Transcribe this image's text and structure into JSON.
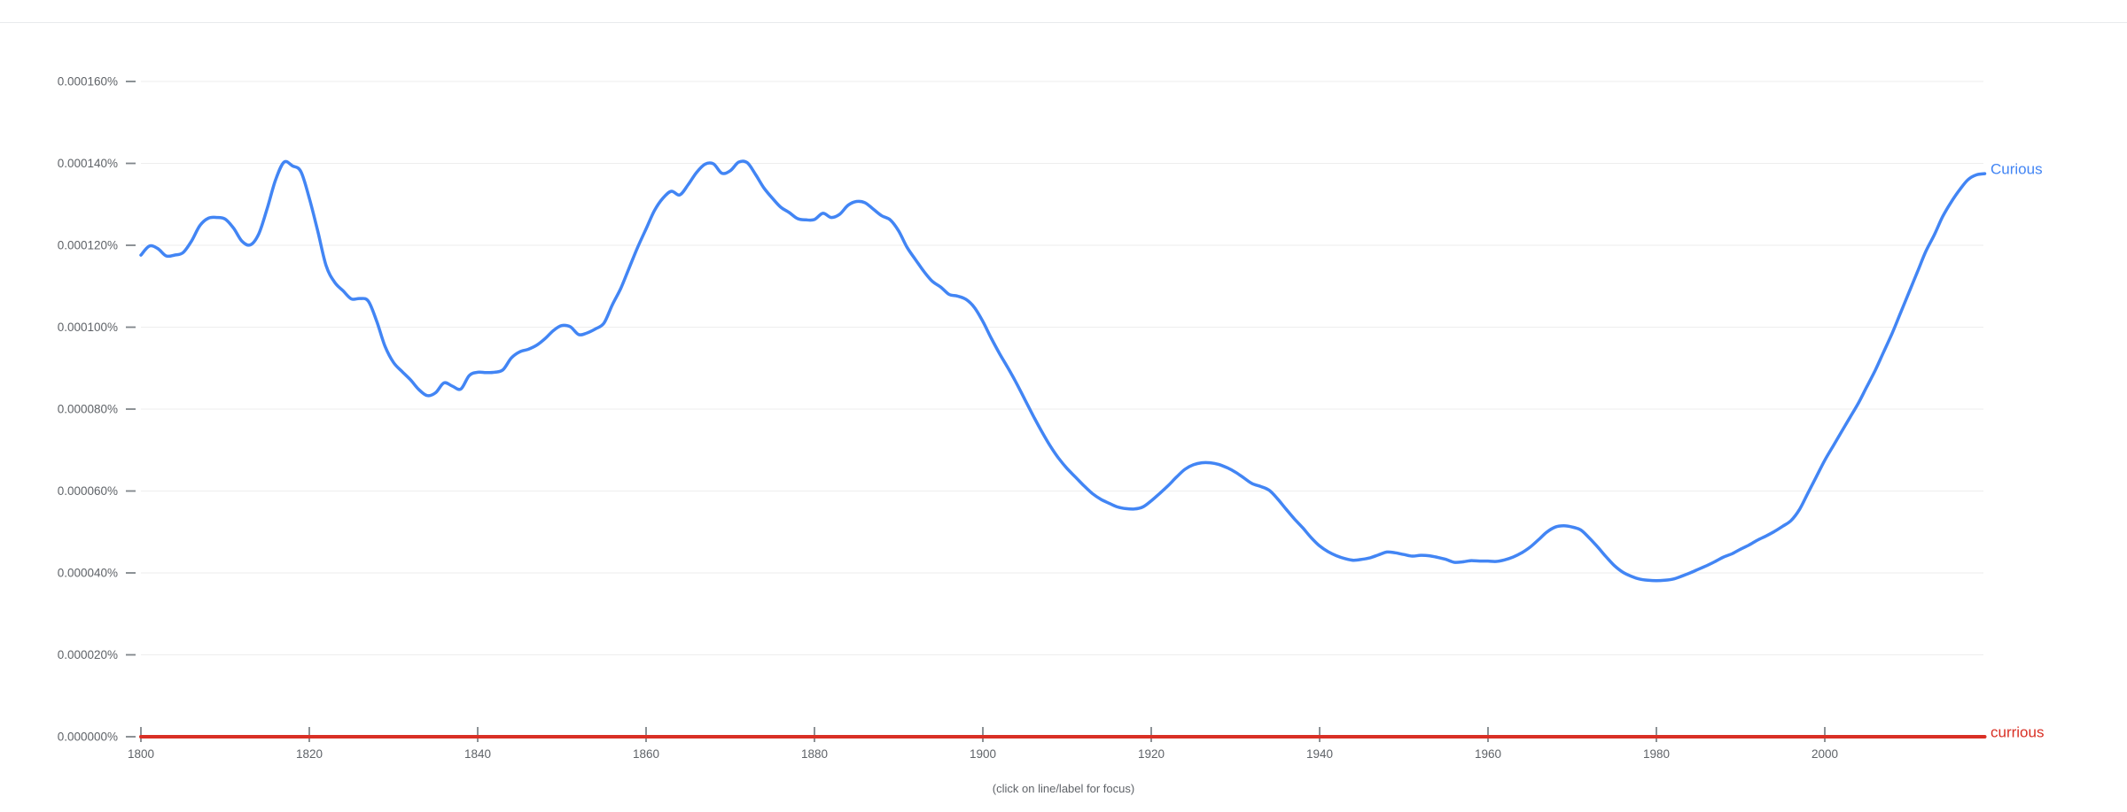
{
  "page": {
    "background": "#ffffff",
    "divider_color": "#e8eaed",
    "footer_hint": "(click on line/label for focus)"
  },
  "chart_data": {
    "type": "line",
    "title": "",
    "xlabel": "",
    "ylabel": "",
    "grid": true,
    "legend_position": "inline-right-end-labels",
    "x_axis": {
      "range": [
        1800,
        2019
      ],
      "ticks": [
        1800,
        1820,
        1840,
        1860,
        1880,
        1900,
        1920,
        1940,
        1960,
        1980,
        2000
      ]
    },
    "y_axis": {
      "unit": "percent",
      "note": "series values are stored in millionths of a percent (140 = 0.000140%)",
      "tick_labels": [
        "0.000160%",
        "0.000140%",
        "0.000120%",
        "0.000100%",
        "0.000080%",
        "0.000060%",
        "0.000040%",
        "0.000020%",
        "0.000000%"
      ],
      "tick_values": [
        160,
        140,
        120,
        100,
        80,
        60,
        40,
        20,
        0
      ],
      "range": [
        0,
        173
      ]
    },
    "colors": {
      "grid": "#eeeeee",
      "axis_text": "#5f6368",
      "tick_mark": "#80868b"
    },
    "series": [
      {
        "name": "Curious",
        "color": "#4285f4",
        "stroke_width": 3.5,
        "start_year": 1800,
        "end_year": 2019,
        "values": [
          117.6,
          119.8,
          119.2,
          117.4,
          117.6,
          118.2,
          121.0,
          124.8,
          126.6,
          126.8,
          126.4,
          124.2,
          121.0,
          120.1,
          122.8,
          129.0,
          136.0,
          140.3,
          139.4,
          138.0,
          131.5,
          123.5,
          115.0,
          111.0,
          108.9,
          106.9,
          107.0,
          106.4,
          101.5,
          95.3,
          91.4,
          89.2,
          87.2,
          84.8,
          83.3,
          84.0,
          86.4,
          85.6,
          84.9,
          88.2,
          89.0,
          88.9,
          89.0,
          89.6,
          92.5,
          94.0,
          94.6,
          95.6,
          97.2,
          99.2,
          100.4,
          100.1,
          98.2,
          98.6,
          99.6,
          101.0,
          105.5,
          109.5,
          114.5,
          119.5,
          124.0,
          128.5,
          131.5,
          133.2,
          132.3,
          134.8,
          137.8,
          139.8,
          139.9,
          137.6,
          138.2,
          140.3,
          140.2,
          137.3,
          134.0,
          131.5,
          129.3,
          128.0,
          126.5,
          126.2,
          126.3,
          127.8,
          126.8,
          127.6,
          129.8,
          130.7,
          130.4,
          128.8,
          127.2,
          126.2,
          123.5,
          119.5,
          116.5,
          113.6,
          111.2,
          109.8,
          108.0,
          107.6,
          106.8,
          104.8,
          101.4,
          97.3,
          93.5,
          90.0,
          86.3,
          82.3,
          78.3,
          74.5,
          71.0,
          68.0,
          65.5,
          63.4,
          61.3,
          59.4,
          58.0,
          57.0,
          56.1,
          55.7,
          55.6,
          56.1,
          57.6,
          59.4,
          61.3,
          63.4,
          65.3,
          66.4,
          66.9,
          66.9,
          66.5,
          65.7,
          64.6,
          63.2,
          61.8,
          61.1,
          60.2,
          58.1,
          55.6,
          53.2,
          51.0,
          48.6,
          46.6,
          45.2,
          44.2,
          43.5,
          43.1,
          43.3,
          43.7,
          44.4,
          45.1,
          44.9,
          44.5,
          44.1,
          44.3,
          44.2,
          43.8,
          43.3,
          42.6,
          42.7,
          43.0,
          42.9,
          42.9,
          42.8,
          43.2,
          43.9,
          44.9,
          46.3,
          48.1,
          50.0,
          51.2,
          51.5,
          51.2,
          50.5,
          48.6,
          46.4,
          44.0,
          41.8,
          40.2,
          39.2,
          38.5,
          38.2,
          38.1,
          38.2,
          38.5,
          39.2,
          40.0,
          40.9,
          41.8,
          42.8,
          43.9,
          44.7,
          45.8,
          46.8,
          48.0,
          49.0,
          50.1,
          51.4,
          52.8,
          55.5,
          59.5,
          63.5,
          67.5,
          71.0,
          74.5,
          78.0,
          81.5,
          85.5,
          89.5,
          94.0,
          98.5,
          103.5,
          108.5,
          113.5,
          118.5,
          122.5,
          127.0,
          130.5,
          133.5,
          136.0,
          137.2,
          137.5
        ]
      },
      {
        "name": "currious",
        "color": "#d93025",
        "stroke_width": 4,
        "start_year": 1800,
        "end_year": 2019,
        "constant_value": 0
      }
    ]
  }
}
